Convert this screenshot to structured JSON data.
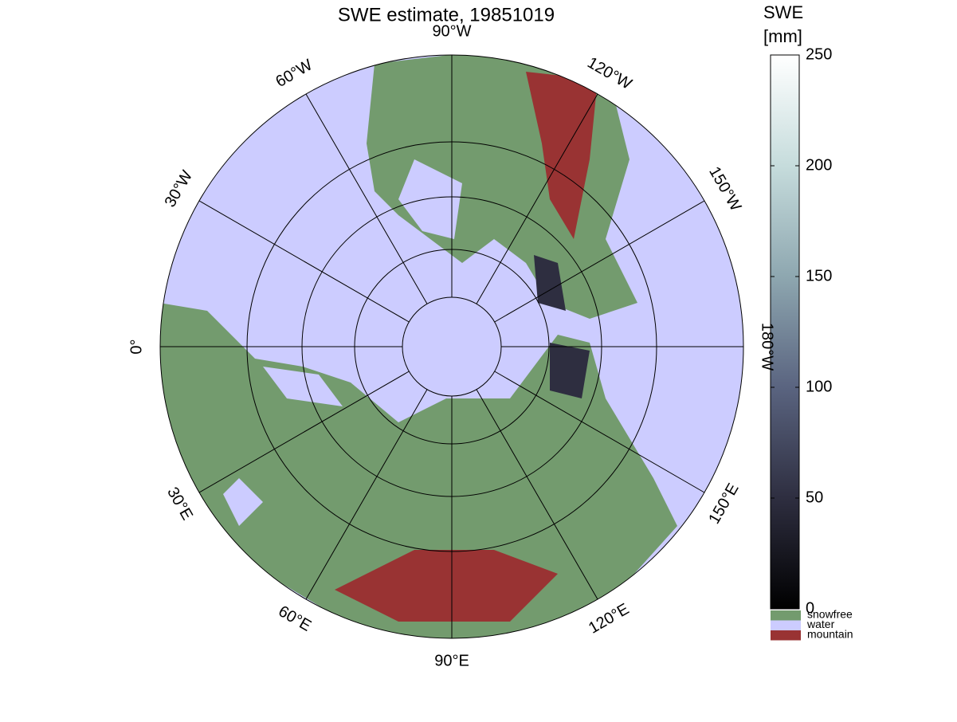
{
  "title": "SWE estimate, 19851019",
  "meridians": [
    {
      "value": -90,
      "label": "90°W"
    },
    {
      "value": -60,
      "label": "60°W"
    },
    {
      "value": -30,
      "label": "30°W"
    },
    {
      "value": 0,
      "label": "0°"
    },
    {
      "value": 30,
      "label": "30°E"
    },
    {
      "value": 60,
      "label": "60°E"
    },
    {
      "value": 90,
      "label": "90°E"
    },
    {
      "value": 120,
      "label": "120°E"
    },
    {
      "value": 150,
      "label": "150°E"
    },
    {
      "value": 180,
      "label": "180°W"
    },
    {
      "value": -150,
      "label": "150°W"
    },
    {
      "value": -120,
      "label": "120°W"
    }
  ],
  "colorbar": {
    "label": [
      "SWE",
      "[mm]"
    ],
    "lim": [
      0,
      250
    ],
    "ticks": [
      0,
      50,
      100,
      150,
      200,
      250
    ],
    "colormap": [
      "#000000",
      "#2e2e40",
      "#5a6480",
      "#8ea7b0",
      "#c6dcdc",
      "#ffffff"
    ]
  },
  "legend": [
    {
      "name": "snowfree",
      "color": "#739b6e"
    },
    {
      "name": "water",
      "color": "#ccccff"
    },
    {
      "name": "mountain",
      "color": "#993333"
    }
  ]
}
